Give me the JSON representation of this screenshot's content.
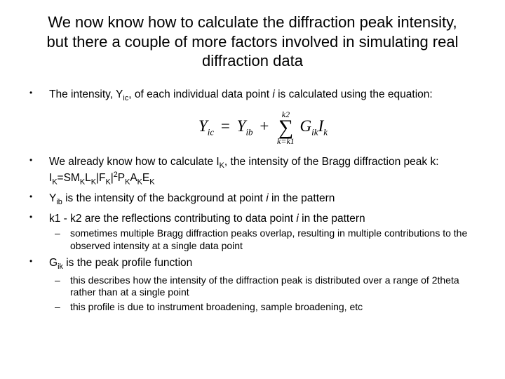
{
  "title": "We now know how to calculate the diffraction peak intensity, but there a couple of more factors involved in simulating real diffraction data",
  "equation": {
    "lhs_base": "Y",
    "lhs_sub": "ic",
    "rhs1_base": "Y",
    "rhs1_sub": "ib",
    "sum_upper": "k2",
    "sum_lower": "k=k1",
    "term1_base": "G",
    "term1_sub": "ik",
    "term2_base": "I",
    "term2_sub": "k"
  },
  "bullet1_a": "The intensity, Y",
  "bullet1_sub": "ic",
  "bullet1_b": ", of each individual data point ",
  "bullet1_i": "i",
  "bullet1_c": " is calculated using the equation:",
  "bullet2_a": "We already know how to calculate I",
  "bullet2_sub1": "K",
  "bullet2_b": ", the intensity of the Bragg diffraction peak k: I",
  "bullet2_sub2": "K",
  "bullet2_c": "=SM",
  "bullet2_sub3": "K",
  "bullet2_d": "L",
  "bullet2_sub4": "K",
  "bullet2_e": "|F",
  "bullet2_sub5": "K",
  "bullet2_f": "|",
  "bullet2_sup": "2",
  "bullet2_g": "P",
  "bullet2_sub6": "K",
  "bullet2_h": "A",
  "bullet2_sub7": "K",
  "bullet2_i2": "E",
  "bullet2_sub8": "K",
  "bullet3_a": "Y",
  "bullet3_sub": "ib",
  "bullet3_b": " is the intensity of the background at point ",
  "bullet3_i": "i",
  "bullet3_c": " in the pattern",
  "bullet4_a": "k1 - k2 are the reflections contributing to data point ",
  "bullet4_i": "i",
  "bullet4_b": " in the pattern",
  "bullet4_sub1": "sometimes multiple Bragg diffraction peaks overlap, resulting in multiple contributions to the observed intensity at a single data point",
  "bullet5_a": "G",
  "bullet5_sub": "ik",
  "bullet5_b": " is the peak profile function",
  "bullet5_sub1": "this describes how the intensity of the diffraction peak is distributed over a range of 2theta rather than at a single point",
  "bullet5_sub2": "this profile is due to instrument broadening, sample broadening, etc",
  "style": {
    "bg": "#ffffff",
    "text": "#000000",
    "title_fontsize": 22,
    "body_fontsize": 15.5,
    "sub_fontsize": 14,
    "eq_fontsize": 23,
    "font_family": "Arial"
  }
}
